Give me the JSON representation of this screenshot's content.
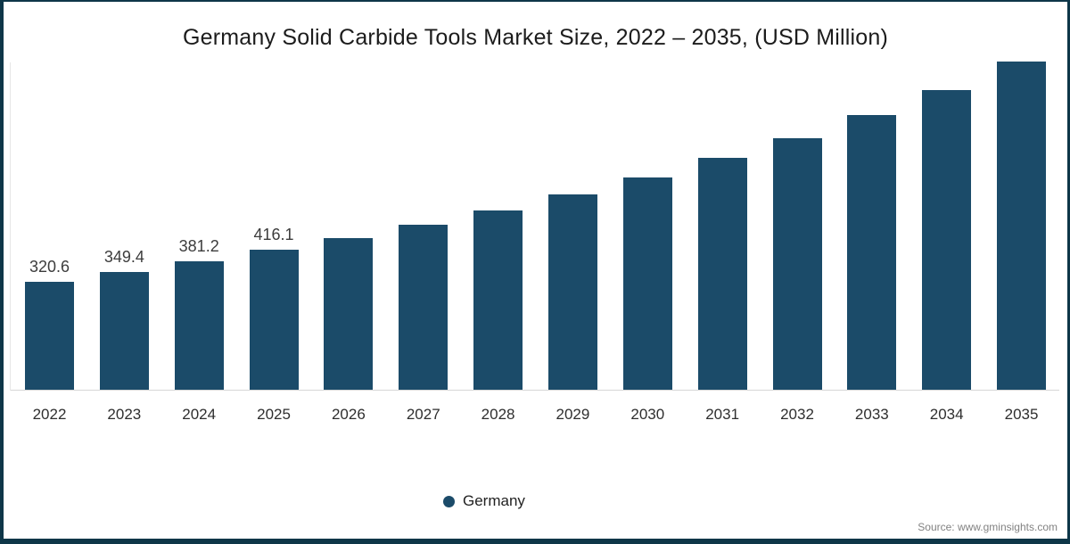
{
  "page": {
    "background_color": "#ffffff",
    "frame_border_color": "#0e3648"
  },
  "chart": {
    "title": "Germany Solid Carbide Tools Market Size, 2022 – 2035, (USD Million)",
    "bar_color": "#1b4b69",
    "axis_line_color": "#d6d6d6",
    "legend": {
      "label": "Germany",
      "marker_color": "#1b4b69"
    },
    "source": "Source: www.gminsights.com"
  },
  "chart_data": {
    "type": "bar",
    "title": "Germany Solid Carbide Tools Market Size, 2022 – 2035, (USD Million)",
    "categories": [
      "2022",
      "2023",
      "2024",
      "2025",
      "2026",
      "2027",
      "2028",
      "2029",
      "2030",
      "2031",
      "2032",
      "2033",
      "2034",
      "2035"
    ],
    "values": [
      320.6,
      349.4,
      381.2,
      416.1,
      451.2,
      490.9,
      532.9,
      580.1,
      630.8,
      688.9,
      746.6,
      815.0,
      888.6,
      973.8
    ],
    "value_labels_visible_for": [
      "2022",
      "2023",
      "2024",
      "2025"
    ],
    "visible_value_labels": [
      "320.6",
      "349.4",
      "381.2",
      "416.1"
    ],
    "series_name": "Germany",
    "units": "USD Million",
    "xlabel": "",
    "ylabel": "",
    "ylim": [
      0,
      1000
    ],
    "grid": false,
    "legend_position": "bottom"
  }
}
